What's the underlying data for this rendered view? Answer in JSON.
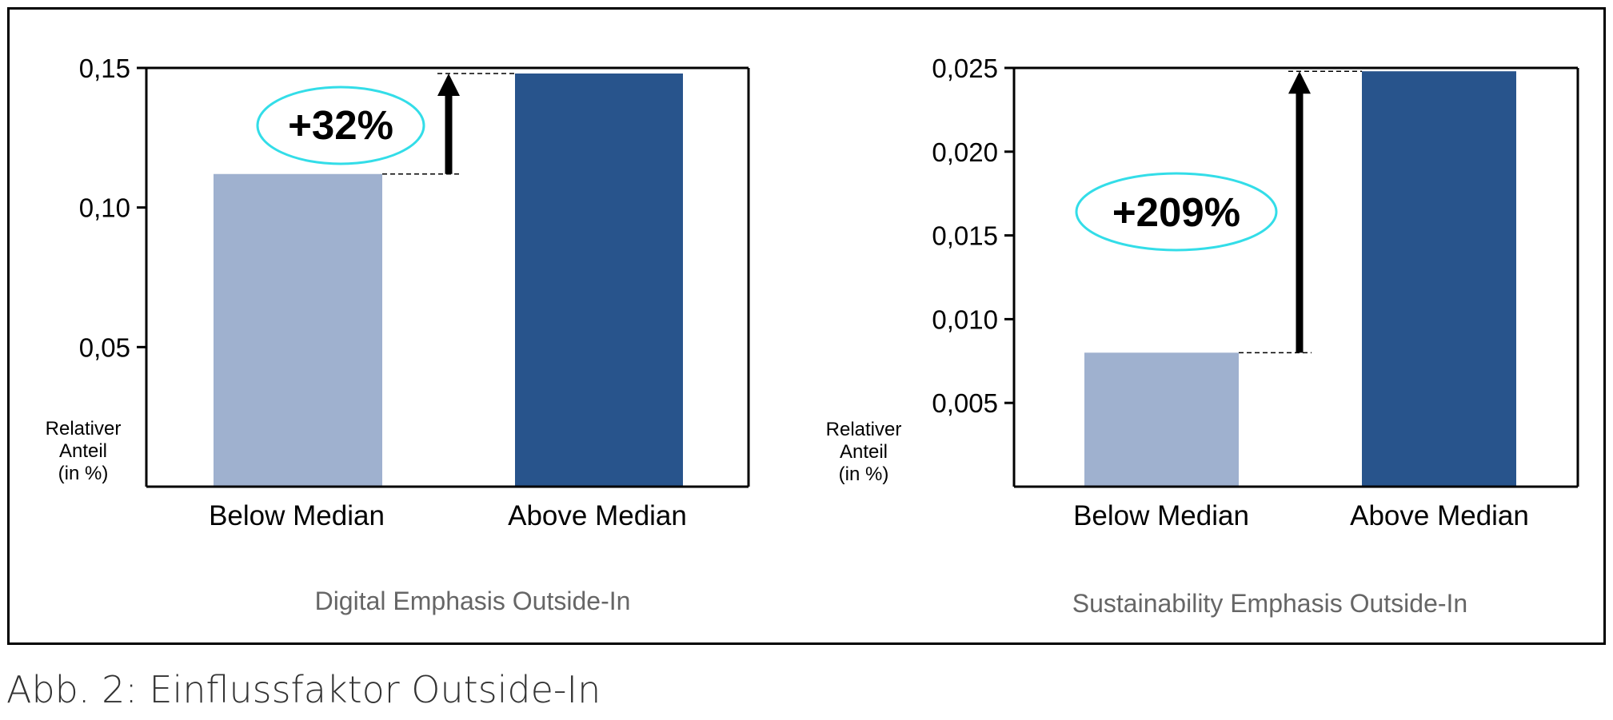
{
  "caption": "Abb. 2: Einflussfaktor Outside-In",
  "colors": {
    "below": "#9fb1cf",
    "above": "#28548c",
    "ellipse": "#33dde8",
    "title": "#666666"
  },
  "chart_data": [
    {
      "type": "bar",
      "title": "Digital Emphasis Outside-In",
      "ylabel": [
        "Relativer",
        "Anteil",
        "(in %)"
      ],
      "categories": [
        "Below Median",
        "Above Median"
      ],
      "values": [
        0.112,
        0.148
      ],
      "ylim": [
        0,
        0.15
      ],
      "yticks": [
        0.05,
        0.1,
        0.15
      ],
      "ytick_labels": [
        "0,05",
        "0,10",
        "0,15"
      ],
      "annotation": "+32%"
    },
    {
      "type": "bar",
      "title": "Sustainability Emphasis Outside-In",
      "ylabel": [
        "Relativer",
        "Anteil",
        "(in %)"
      ],
      "categories": [
        "Below Median",
        "Above Median"
      ],
      "values": [
        0.008,
        0.0248
      ],
      "ylim": [
        0,
        0.025
      ],
      "yticks": [
        0.005,
        0.01,
        0.015,
        0.02,
        0.025
      ],
      "ytick_labels": [
        "0,005",
        "0,010",
        "0,015",
        "0,020",
        "0,025"
      ],
      "annotation": "+209%"
    }
  ]
}
